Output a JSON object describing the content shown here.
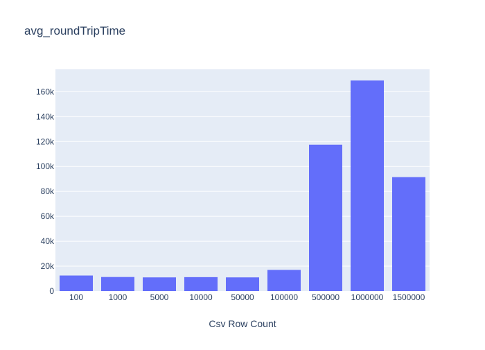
{
  "chart_data": {
    "type": "bar",
    "title": "avg_roundTripTime",
    "xlabel": "Csv Row Count",
    "ylabel": "",
    "categories": [
      "100",
      "1000",
      "5000",
      "10000",
      "50000",
      "100000",
      "500000",
      "1000000",
      "1500000"
    ],
    "values": [
      12500,
      11300,
      11000,
      11200,
      11000,
      17000,
      117500,
      169000,
      91500
    ],
    "ylim": [
      0,
      178000
    ],
    "yticks": [
      0,
      20000,
      40000,
      60000,
      80000,
      100000,
      120000,
      140000,
      160000
    ],
    "ytick_labels": [
      "0",
      "20k",
      "40k",
      "60k",
      "80k",
      "100k",
      "120k",
      "140k",
      "160k"
    ],
    "grid": true,
    "bar_color": "#636efa",
    "plot_bg": "#e5ecf6",
    "text_color": "#2a3f5f"
  }
}
